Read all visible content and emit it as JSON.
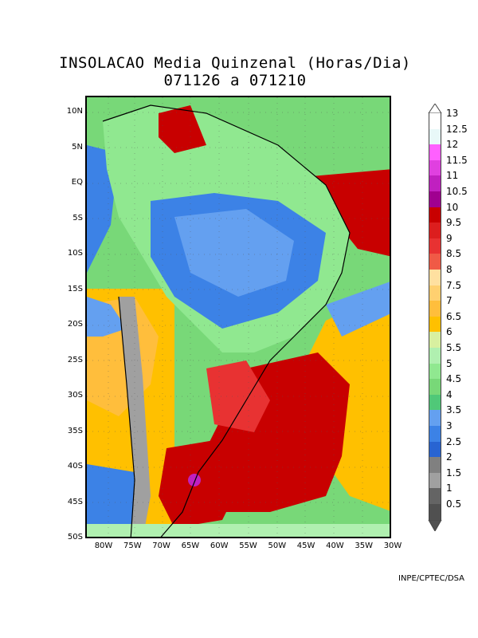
{
  "title_line1": "INSOLACAO Media Quinzenal  (Horas/Dia)",
  "title_line2": "071126   a   071210",
  "credit": "INPE/CPTEC/DSA",
  "lat_labels": [
    "10N",
    "5N",
    "EQ",
    "5S",
    "10S",
    "15S",
    "20S",
    "25S",
    "30S",
    "35S",
    "40S",
    "45S",
    "50S"
  ],
  "lon_labels": [
    "80W",
    "75W",
    "70W",
    "65W",
    "60W",
    "55W",
    "50W",
    "45W",
    "40W",
    "35W",
    "30W"
  ],
  "legend": {
    "labels": [
      "13",
      "12.5",
      "12",
      "11.5",
      "11",
      "10.5",
      "10",
      "9.5",
      "9",
      "8.5",
      "8",
      "7.5",
      "7",
      "6.5",
      "6",
      "5.5",
      "5",
      "4.5",
      "4",
      "3.5",
      "3",
      "2.5",
      "2",
      "1.5",
      "1",
      "0.5"
    ],
    "colors": [
      "#ffffff",
      "#e8f8f8",
      "#ff60ff",
      "#e040e0",
      "#c020c0",
      "#a00090",
      "#c80000",
      "#dc1e1e",
      "#e83232",
      "#f05a46",
      "#ffe0a0",
      "#ffd070",
      "#ffbe3c",
      "#ffc000",
      "#d8f0a0",
      "#b0f0b0",
      "#90e890",
      "#78d878",
      "#50c878",
      "#64a0f0",
      "#3c82e6",
      "#2864d2",
      "#808080",
      "#a0a0a0",
      "#646464",
      "#505050"
    ]
  }
}
